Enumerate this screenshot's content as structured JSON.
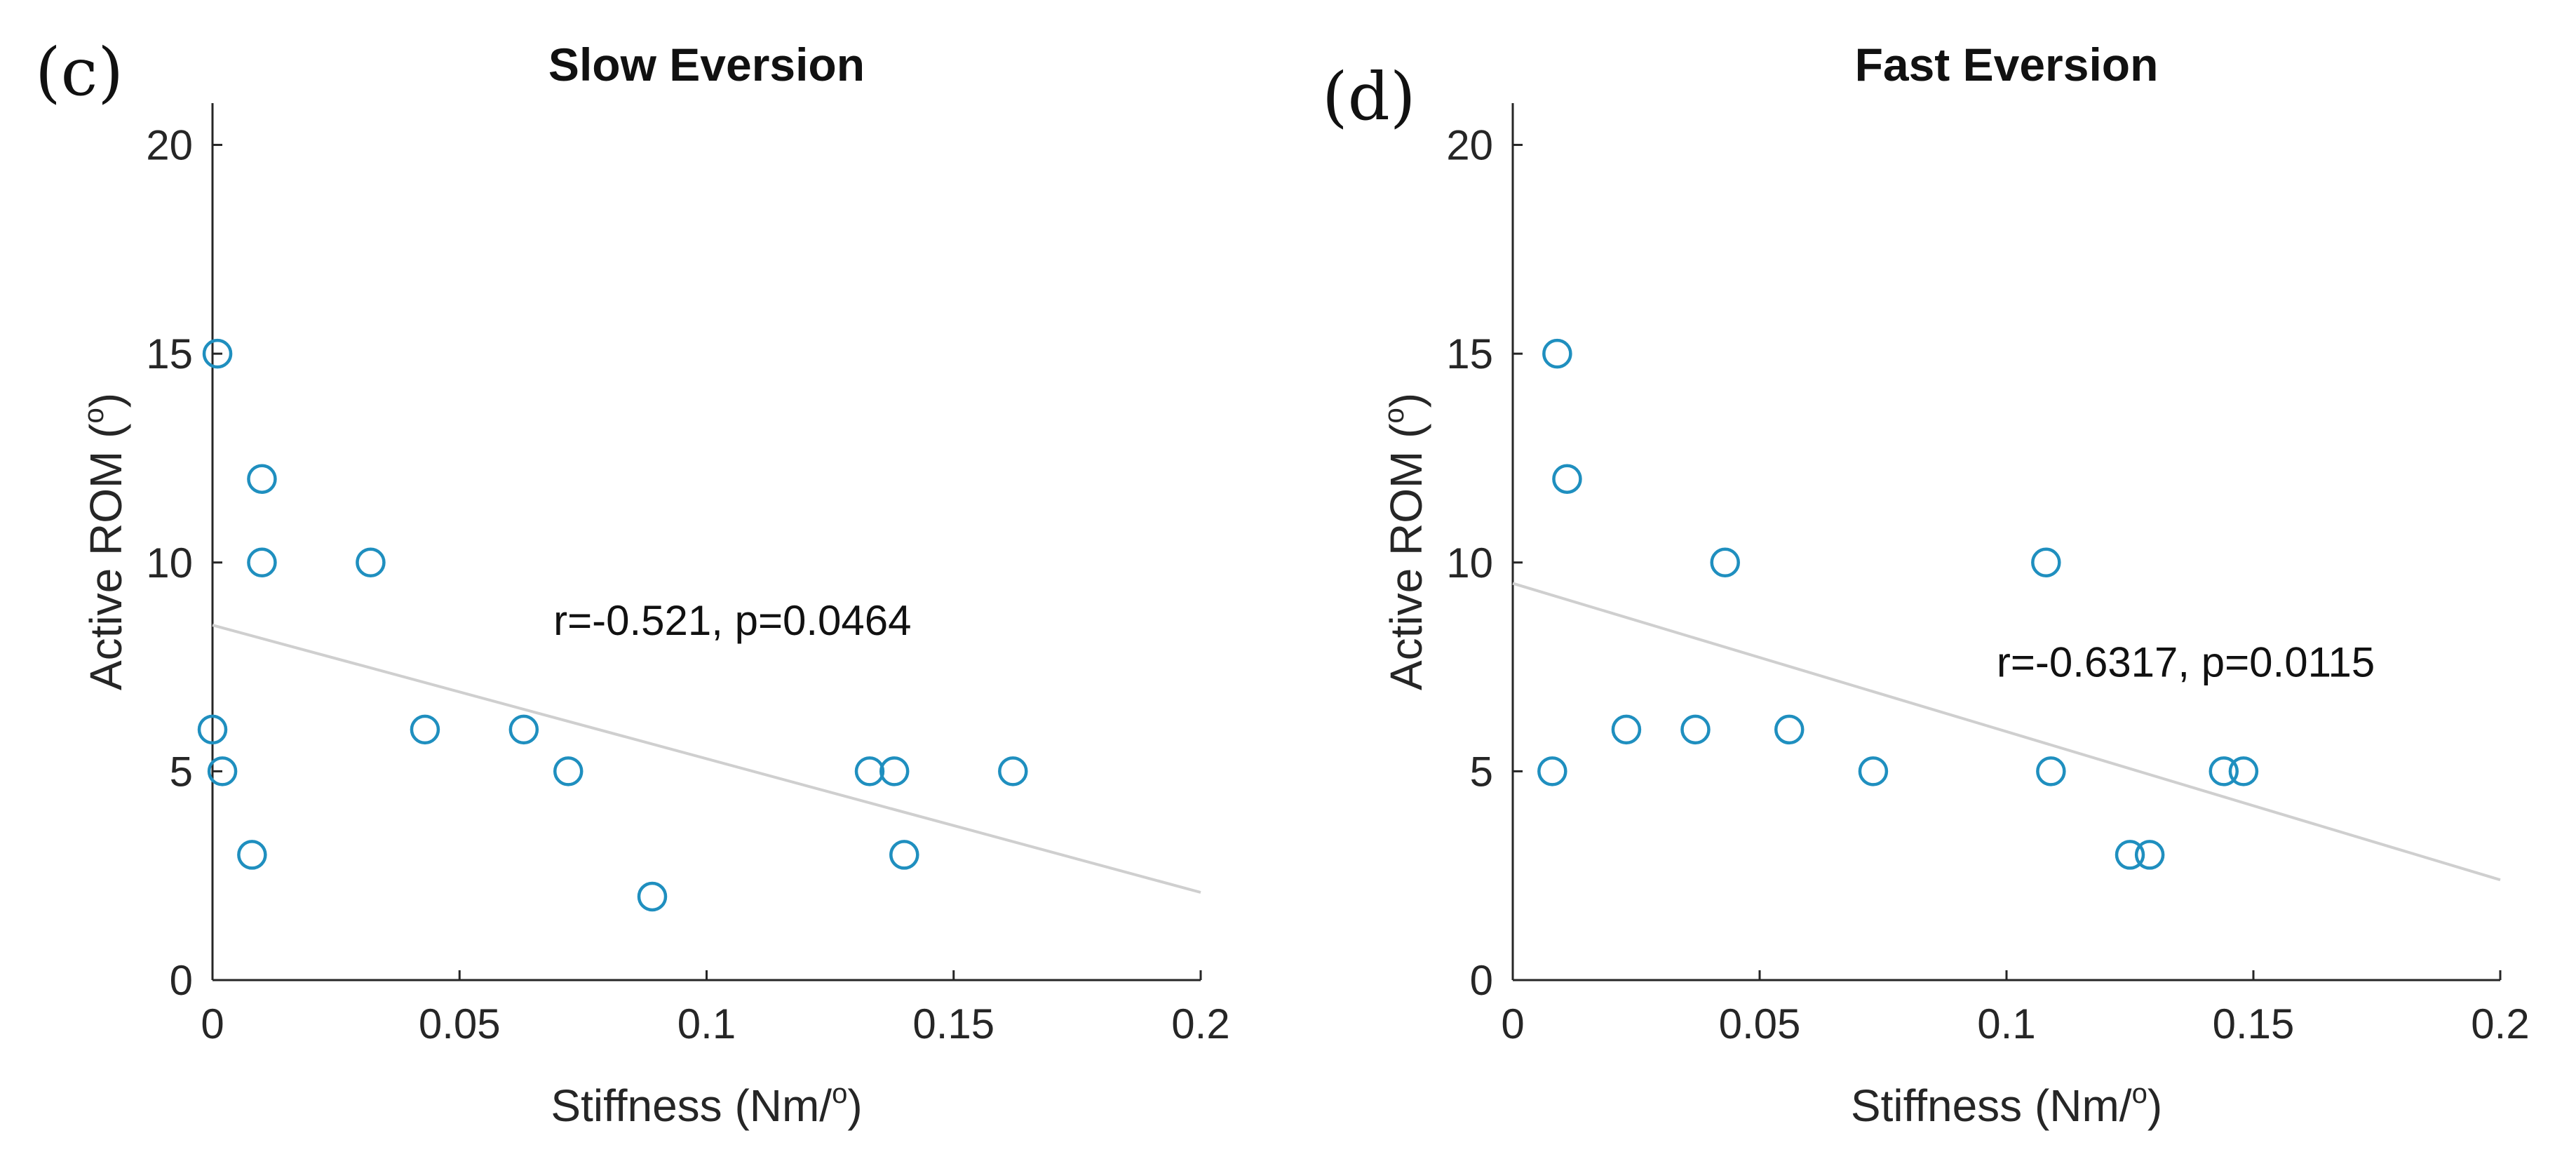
{
  "colors": {
    "marker": "#1f8fbf",
    "axis": "#262626",
    "fit_line": "#cfcfcf",
    "background": "#ffffff"
  },
  "chart_data": [
    {
      "type": "scatter",
      "panel_label": "(c)",
      "title": "Slow Eversion",
      "xlabel": "Stiffness (Nm/",
      "xlabel_sup": "o",
      "xlabel_end": ")",
      "ylabel": "Active ROM (",
      "ylabel_sup": "o",
      "ylabel_end": ")",
      "xlim": [
        0,
        0.2
      ],
      "ylim": [
        0,
        21
      ],
      "xticks": [
        0,
        0.05,
        0.1,
        0.15,
        0.2
      ],
      "xtick_labels": [
        "0",
        "0.05",
        "0.1",
        "0.15",
        "0.2"
      ],
      "yticks": [
        0,
        5,
        10,
        15,
        20
      ],
      "ytick_labels": [
        "0",
        "5",
        "10",
        "15",
        "20"
      ],
      "grid": false,
      "points": [
        {
          "x": 0.001,
          "y": 15
        },
        {
          "x": 0.0,
          "y": 6
        },
        {
          "x": 0.002,
          "y": 5
        },
        {
          "x": 0.008,
          "y": 3
        },
        {
          "x": 0.01,
          "y": 12
        },
        {
          "x": 0.01,
          "y": 10
        },
        {
          "x": 0.032,
          "y": 10
        },
        {
          "x": 0.043,
          "y": 6
        },
        {
          "x": 0.063,
          "y": 6
        },
        {
          "x": 0.072,
          "y": 5
        },
        {
          "x": 0.089,
          "y": 2
        },
        {
          "x": 0.133,
          "y": 5
        },
        {
          "x": 0.138,
          "y": 5
        },
        {
          "x": 0.14,
          "y": 3
        },
        {
          "x": 0.162,
          "y": 5
        }
      ],
      "fit_line": {
        "x": [
          0,
          0.2
        ],
        "y": [
          8.5,
          2.1
        ]
      },
      "annotation": {
        "text": "r=-0.521, p=0.0464",
        "x": 0.069,
        "y": 8.6
      }
    },
    {
      "type": "scatter",
      "panel_label": "(d)",
      "title": "Fast Eversion",
      "xlabel": "Stiffness (Nm/",
      "xlabel_sup": "o",
      "xlabel_end": ")",
      "ylabel": "Active ROM (",
      "ylabel_sup": "o",
      "ylabel_end": ")",
      "xlim": [
        0,
        0.2
      ],
      "ylim": [
        0,
        21
      ],
      "xticks": [
        0,
        0.05,
        0.1,
        0.15,
        0.2
      ],
      "xtick_labels": [
        "0",
        "0.05",
        "0.1",
        "0.15",
        "0.2"
      ],
      "yticks": [
        0,
        5,
        10,
        15,
        20
      ],
      "ytick_labels": [
        "0",
        "5",
        "10",
        "15",
        "20"
      ],
      "grid": false,
      "points": [
        {
          "x": 0.009,
          "y": 15
        },
        {
          "x": 0.011,
          "y": 12
        },
        {
          "x": 0.008,
          "y": 5
        },
        {
          "x": 0.023,
          "y": 6
        },
        {
          "x": 0.037,
          "y": 6
        },
        {
          "x": 0.043,
          "y": 10
        },
        {
          "x": 0.056,
          "y": 6
        },
        {
          "x": 0.073,
          "y": 5
        },
        {
          "x": 0.108,
          "y": 10
        },
        {
          "x": 0.109,
          "y": 5
        },
        {
          "x": 0.125,
          "y": 3
        },
        {
          "x": 0.129,
          "y": 3
        },
        {
          "x": 0.144,
          "y": 5
        },
        {
          "x": 0.148,
          "y": 5
        }
      ],
      "fit_line": {
        "x": [
          0,
          0.2
        ],
        "y": [
          9.5,
          2.4
        ]
      },
      "annotation": {
        "text": "r=-0.6317, p=0.0115",
        "x": 0.098,
        "y": 7.6
      }
    }
  ]
}
